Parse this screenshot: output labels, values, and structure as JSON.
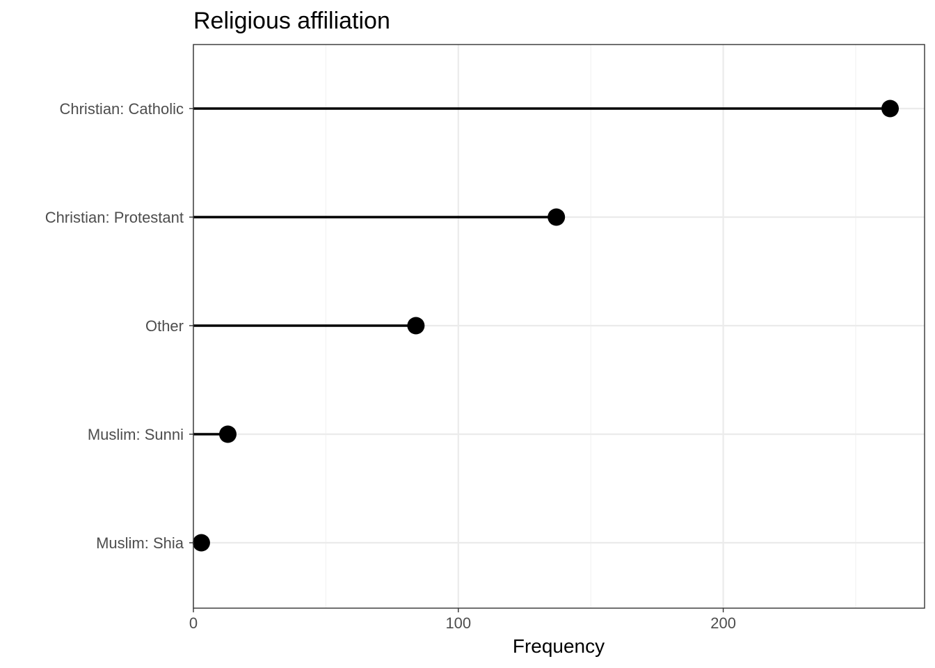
{
  "chart_data": {
    "type": "lollipop",
    "title": "Religious affiliation",
    "xlabel": "Frequency",
    "ylabel": "",
    "categories": [
      "Christian: Catholic",
      "Christian: Protestant",
      "Other",
      "Muslim: Sunni",
      "Muslim: Shia"
    ],
    "values": [
      263,
      137,
      84,
      13,
      3
    ],
    "x_ticks": [
      0,
      100,
      200
    ],
    "xlim": [
      0,
      276
    ],
    "grid": true,
    "legend": "none",
    "colors": {
      "mark": "#000000",
      "grid_major": "#ebebeb",
      "grid_minor": "#f4f4f4",
      "panel_border": "#333333",
      "tick_text": "#4d4d4d"
    }
  }
}
